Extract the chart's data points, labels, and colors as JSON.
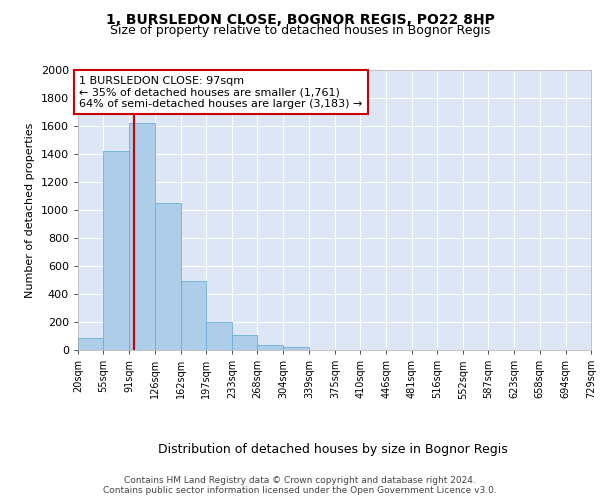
{
  "title1": "1, BURSLEDON CLOSE, BOGNOR REGIS, PO22 8HP",
  "title2": "Size of property relative to detached houses in Bognor Regis",
  "xlabel": "Distribution of detached houses by size in Bognor Regis",
  "ylabel": "Number of detached properties",
  "bin_labels": [
    "20sqm",
    "55sqm",
    "91sqm",
    "126sqm",
    "162sqm",
    "197sqm",
    "233sqm",
    "268sqm",
    "304sqm",
    "339sqm",
    "375sqm",
    "410sqm",
    "446sqm",
    "481sqm",
    "516sqm",
    "552sqm",
    "587sqm",
    "623sqm",
    "658sqm",
    "694sqm",
    "729sqm"
  ],
  "bin_edges": [
    20,
    55,
    91,
    126,
    162,
    197,
    233,
    268,
    304,
    339,
    375,
    410,
    446,
    481,
    516,
    552,
    587,
    623,
    658,
    694,
    729
  ],
  "bar_heights": [
    85,
    1420,
    1620,
    1050,
    490,
    200,
    110,
    35,
    20,
    0,
    0,
    0,
    0,
    0,
    0,
    0,
    0,
    0,
    0,
    0
  ],
  "bar_color": "#aecde8",
  "bar_edge_color": "#6baed6",
  "bg_color": "#dce6f5",
  "grid_color": "#ffffff",
  "vline_x": 97,
  "vline_color": "#cc0000",
  "annotation_line1": "1 BURSLEDON CLOSE: 97sqm",
  "annotation_line2": "← 35% of detached houses are smaller (1,761)",
  "annotation_line3": "64% of semi-detached houses are larger (3,183) →",
  "annotation_box_color": "#cc0000",
  "ylim": [
    0,
    2000
  ],
  "yticks": [
    0,
    200,
    400,
    600,
    800,
    1000,
    1200,
    1400,
    1600,
    1800,
    2000
  ],
  "footer": "Contains HM Land Registry data © Crown copyright and database right 2024.\nContains public sector information licensed under the Open Government Licence v3.0."
}
